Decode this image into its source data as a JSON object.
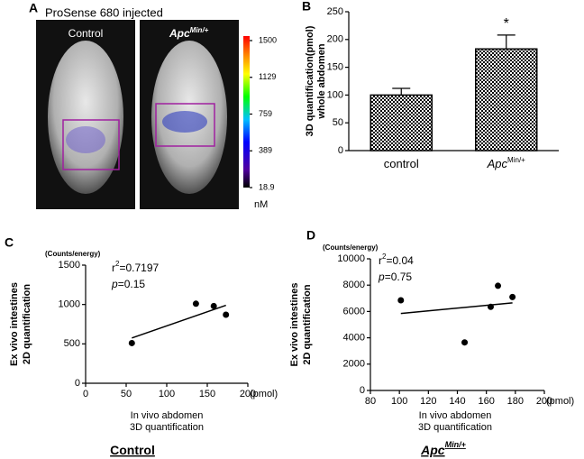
{
  "image_panel": {
    "label": "A",
    "title": "ProSense 680 injected",
    "left_label": "Control",
    "right_label": "Apc",
    "right_label_superscript": "Min/+",
    "colorbar_ticks": [
      1500,
      1129,
      759,
      389,
      18.9
    ],
    "colorbar_unit": "nM"
  },
  "chart_data": [
    {
      "type": "bar",
      "label": "B",
      "ylabel": [
        "3D quantification(pmol)",
        "whole abdomen"
      ],
      "categories": [
        "control",
        "Apc"
      ],
      "category_superscripts": [
        null,
        "Min/+"
      ],
      "values": [
        100,
        183
      ],
      "errors": [
        12,
        25
      ],
      "annotation": "*",
      "ylim": [
        0,
        250
      ],
      "yticks": [
        0,
        50,
        100,
        150,
        200,
        250
      ]
    },
    {
      "type": "scatter",
      "label": "C",
      "ylabel_unit": "(Counts/energy)",
      "ylabel": [
        "Ex vivo intestines",
        "2D quantification"
      ],
      "xlabel": [
        "In vivo abdomen",
        "3D quantification"
      ],
      "xlabel_unit": "(pmol)",
      "x": [
        57,
        136,
        158,
        173
      ],
      "y": [
        510,
        1010,
        980,
        870
      ],
      "fit": {
        "x": [
          57,
          173
        ],
        "y": [
          575,
          990
        ]
      },
      "stats": [
        {
          "symbol": "r",
          "sup": "2",
          "text": "=0.7197"
        },
        {
          "symbol": "p",
          "text": "=0.15"
        }
      ],
      "caption": "Control",
      "xlim": [
        0,
        200
      ],
      "xticks": [
        0,
        50,
        100,
        150,
        200
      ],
      "ylim": [
        0,
        1500
      ],
      "yticks": [
        0,
        500,
        1000,
        1500
      ]
    },
    {
      "type": "scatter",
      "label": "D",
      "ylabel_unit": "(Counts/energy)",
      "ylabel": [
        "Ex vivo intestines",
        "2D quantification"
      ],
      "xlabel": [
        "In vivo abdomen",
        "3D quantification"
      ],
      "xlabel_unit": "(pmol)",
      "x": [
        101,
        145,
        163,
        168,
        178
      ],
      "y": [
        6850,
        3650,
        6350,
        7950,
        7100
      ],
      "fit": {
        "x": [
          101,
          178
        ],
        "y": [
          5850,
          6650
        ]
      },
      "stats": [
        {
          "symbol": "r",
          "sup": "2",
          "text": "=0.04"
        },
        {
          "symbol": "p",
          "text": "=0.75"
        }
      ],
      "caption": "Apc",
      "caption_superscript": "Min/+",
      "xlim": [
        80,
        200
      ],
      "xticks": [
        80,
        100,
        120,
        140,
        160,
        180,
        200
      ],
      "ylim": [
        0,
        10000
      ],
      "yticks": [
        0,
        2000,
        4000,
        6000,
        8000,
        10000
      ]
    }
  ]
}
